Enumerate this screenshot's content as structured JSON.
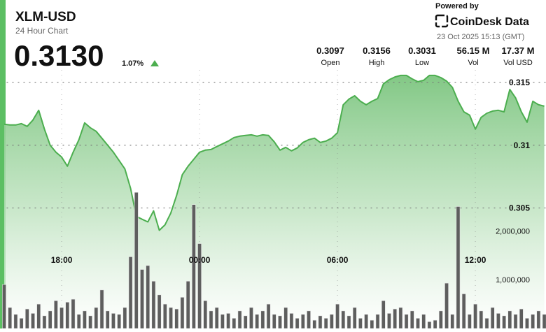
{
  "header": {
    "symbol": "XLM-USD",
    "period": "24 Hour Chart",
    "price": "0.3130",
    "change": "1.07%",
    "powered_by": "Powered by",
    "brand": "CoinDesk Data",
    "timestamp": "23 Oct 2025 15:13 (GMT)",
    "stats": [
      {
        "value": "0.3097",
        "label": "Open"
      },
      {
        "value": "0.3156",
        "label": "High"
      },
      {
        "value": "0.3031",
        "label": "Low"
      },
      {
        "value": "56.15 M",
        "label": "Vol"
      },
      {
        "value": "17.37 M",
        "label": "Vol USD"
      }
    ]
  },
  "chart_data": {
    "type": "line",
    "categories": [
      null,
      null,
      null,
      null,
      null,
      null,
      null,
      null,
      null,
      null,
      "18:00",
      null,
      null,
      null,
      null,
      null,
      null,
      null,
      null,
      null,
      null,
      null,
      null,
      null,
      null,
      null,
      null,
      null,
      null,
      null,
      null,
      null,
      null,
      null,
      "00:00",
      null,
      null,
      null,
      null,
      null,
      null,
      null,
      null,
      null,
      null,
      null,
      null,
      null,
      null,
      null,
      null,
      null,
      null,
      null,
      null,
      null,
      null,
      null,
      "06:00",
      null,
      null,
      null,
      null,
      null,
      null,
      null,
      null,
      null,
      null,
      null,
      null,
      null,
      null,
      null,
      null,
      null,
      null,
      null,
      null,
      null,
      null,
      null,
      "12:00",
      null,
      null,
      null,
      null,
      null,
      null,
      null,
      null,
      null,
      null,
      null,
      null
    ],
    "series": [
      {
        "color": "#4cae4f",
        "values": [
          0.31167,
          0.31161,
          0.31161,
          0.31172,
          0.3115,
          0.312,
          0.31278,
          0.31128,
          0.31,
          0.30944,
          0.30905,
          0.30833,
          0.30944,
          0.31044,
          0.31178,
          0.31139,
          0.31111,
          0.31056,
          0.31,
          0.30944,
          0.30878,
          0.30811,
          0.30655,
          0.30433,
          0.3041,
          0.30389,
          0.30477,
          0.30322,
          0.30366,
          0.3046,
          0.306,
          0.30766,
          0.30833,
          0.30889,
          0.30944,
          0.30961,
          0.30966,
          0.30989,
          0.31011,
          0.31033,
          0.31061,
          0.31072,
          0.31078,
          0.31083,
          0.31072,
          0.31083,
          0.31078,
          0.31027,
          0.30961,
          0.30983,
          0.30955,
          0.30978,
          0.31022,
          0.31044,
          0.31056,
          0.31022,
          0.31033,
          0.31056,
          0.311,
          0.31322,
          0.31367,
          0.31394,
          0.3135,
          0.31322,
          0.3135,
          0.31372,
          0.31489,
          0.31522,
          0.31544,
          0.31556,
          0.31556,
          0.31528,
          0.31506,
          0.31517,
          0.31556,
          0.31556,
          0.31539,
          0.31511,
          0.31461,
          0.3135,
          0.31266,
          0.31239,
          0.31128,
          0.31222,
          0.31255,
          0.31272,
          0.31278,
          0.31266,
          0.31444,
          0.31378,
          0.31266,
          0.31183,
          0.3135,
          0.31322,
          0.31311
        ]
      },
      {
        "type": "bar",
        "axis": "y2",
        "color": "#5e5e5e",
        "values": [
          900000,
          430000,
          290000,
          210000,
          400000,
          310000,
          500000,
          260000,
          360000,
          570000,
          430000,
          540000,
          600000,
          290000,
          360000,
          260000,
          430000,
          790000,
          360000,
          310000,
          290000,
          430000,
          1470000,
          2790000,
          1210000,
          1290000,
          970000,
          690000,
          500000,
          430000,
          400000,
          640000,
          970000,
          2540000,
          1740000,
          570000,
          360000,
          430000,
          290000,
          310000,
          210000,
          360000,
          260000,
          430000,
          290000,
          360000,
          500000,
          290000,
          260000,
          430000,
          310000,
          210000,
          290000,
          360000,
          170000,
          260000,
          210000,
          290000,
          500000,
          360000,
          260000,
          430000,
          210000,
          290000,
          170000,
          290000,
          570000,
          310000,
          400000,
          430000,
          290000,
          360000,
          210000,
          290000,
          140000,
          170000,
          360000,
          930000,
          290000,
          2500000,
          710000,
          290000,
          500000,
          360000,
          210000,
          430000,
          310000,
          260000,
          360000,
          290000,
          400000,
          210000,
          290000,
          360000,
          290000
        ]
      }
    ],
    "ylim": [
      0.2954,
      0.316
    ],
    "yticks": [
      0.305,
      0.31,
      0.315
    ],
    "y2lim": [
      0,
      5300000
    ],
    "y2ticks": [
      {
        "value": 1000000,
        "label": "1,000,000"
      },
      {
        "value": 2000000,
        "label": "2,000,000"
      }
    ],
    "grid": true
  }
}
